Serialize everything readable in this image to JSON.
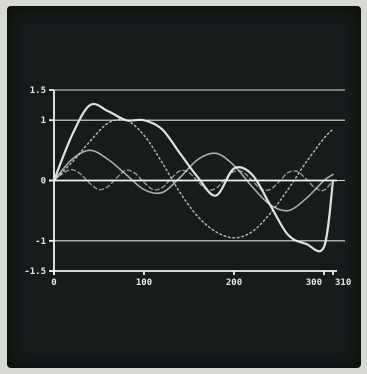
{
  "chart_data": {
    "type": "line",
    "title": "",
    "xlabel": "",
    "ylabel": "",
    "xlim": [
      0,
      310
    ],
    "ylim": [
      -1.5,
      1.5
    ],
    "x_ticks": [
      "0",
      "100",
      "200",
      "300",
      "310"
    ],
    "y_ticks": [
      "1.5",
      "1",
      "0",
      "-1",
      "-1.5"
    ],
    "grid_y": [
      1.5,
      1,
      0,
      -1
    ],
    "legend": "none",
    "colors": {
      "background": "#171b1c",
      "lines": "#e8ece6",
      "frame": "#d8d8d4"
    },
    "series": [
      {
        "style": "solid",
        "x": [
          0,
          20,
          40,
          60,
          80,
          100,
          120,
          140,
          160,
          180,
          200,
          220,
          240,
          260,
          280,
          300,
          310
        ],
        "values": [
          0,
          0.75,
          1.25,
          1.15,
          1.0,
          1.0,
          0.85,
          0.45,
          0.05,
          -0.25,
          0.2,
          0.1,
          -0.4,
          -0.9,
          -1.05,
          -1.1,
          0
        ]
      },
      {
        "style": "solid-faint",
        "x": [
          0,
          20,
          40,
          60,
          80,
          100,
          120,
          140,
          160,
          180,
          200,
          220,
          240,
          260,
          280,
          300,
          310
        ],
        "values": [
          0,
          0.35,
          0.5,
          0.35,
          0.1,
          -0.15,
          -0.2,
          0.05,
          0.35,
          0.45,
          0.25,
          -0.1,
          -0.4,
          -0.5,
          -0.3,
          0.0,
          0.1
        ]
      },
      {
        "style": "dotted",
        "x": [
          0,
          20,
          40,
          60,
          80,
          100,
          120,
          140,
          160,
          180,
          200,
          220,
          240,
          260,
          280,
          300,
          310
        ],
        "values": [
          0,
          0.3,
          0.65,
          0.95,
          1.0,
          0.75,
          0.3,
          -0.2,
          -0.6,
          -0.85,
          -0.95,
          -0.85,
          -0.55,
          -0.15,
          0.3,
          0.7,
          0.85
        ]
      },
      {
        "style": "dashed",
        "x": [
          0,
          10,
          20,
          30,
          40,
          50,
          60,
          70,
          80,
          90,
          100,
          110,
          120,
          130,
          140,
          150,
          160,
          170,
          180,
          190,
          200,
          210,
          220,
          230,
          240,
          250,
          260,
          270,
          280,
          290,
          300,
          310
        ],
        "values": [
          0,
          0.12,
          0.18,
          0.1,
          -0.05,
          -0.15,
          -0.1,
          0.05,
          0.17,
          0.12,
          -0.03,
          -0.15,
          -0.12,
          0.03,
          0.16,
          0.13,
          -0.02,
          -0.15,
          -0.13,
          0.02,
          0.15,
          0.14,
          0.0,
          -0.14,
          -0.15,
          -0.02,
          0.13,
          0.15,
          0.03,
          -0.12,
          -0.16,
          0
        ]
      }
    ]
  }
}
